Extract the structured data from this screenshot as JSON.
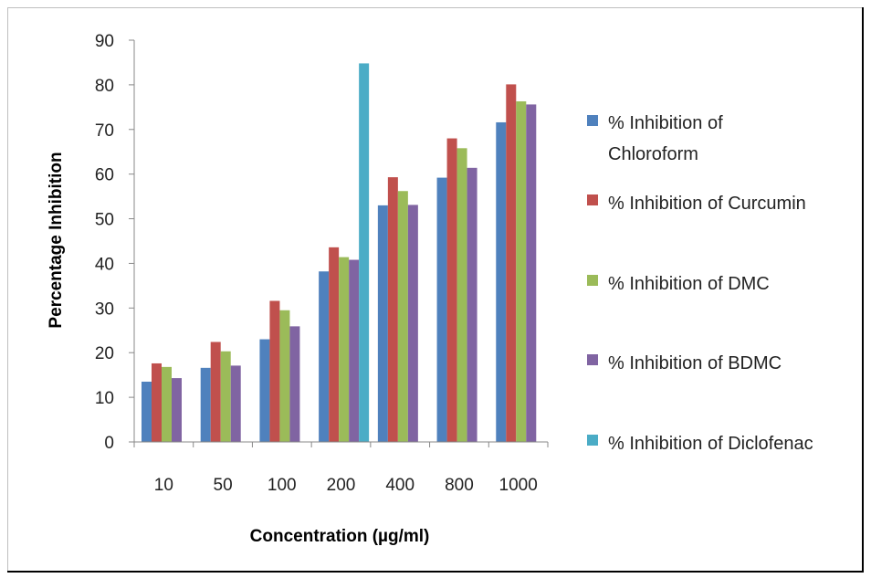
{
  "chart_data": {
    "type": "bar",
    "xlabel": "Concentration (µg/ml)",
    "ylabel": "Percentage Inhibition",
    "ylim": [
      0,
      90
    ],
    "yticks": [
      0,
      10,
      20,
      30,
      40,
      50,
      60,
      70,
      80,
      90
    ],
    "categories": [
      "10",
      "50",
      "100",
      "200",
      "400",
      "800",
      "1000"
    ],
    "grid": false,
    "legend_position": "right",
    "series": [
      {
        "name": "% Inhibition of Chloroform",
        "color": "#4f81bd",
        "values": [
          13.5,
          16.6,
          23.0,
          38.2,
          53.0,
          59.2,
          71.6
        ]
      },
      {
        "name": "% Inhibition of Curcumin",
        "color": "#c0504d",
        "values": [
          17.6,
          22.4,
          31.6,
          43.6,
          59.3,
          68.0,
          80.1
        ]
      },
      {
        "name": "% Inhibition of DMC",
        "color": "#9bbb59",
        "values": [
          16.8,
          20.3,
          29.5,
          41.4,
          56.2,
          65.8,
          76.3
        ]
      },
      {
        "name": "% Inhibition of BDMC",
        "color": "#8064a2",
        "values": [
          14.3,
          17.1,
          25.9,
          40.8,
          53.1,
          61.4,
          75.6
        ]
      },
      {
        "name": "% Inhibition of Diclofenac",
        "color": "#4bacc6",
        "values": [
          null,
          null,
          null,
          84.8,
          null,
          null,
          null
        ]
      }
    ]
  }
}
